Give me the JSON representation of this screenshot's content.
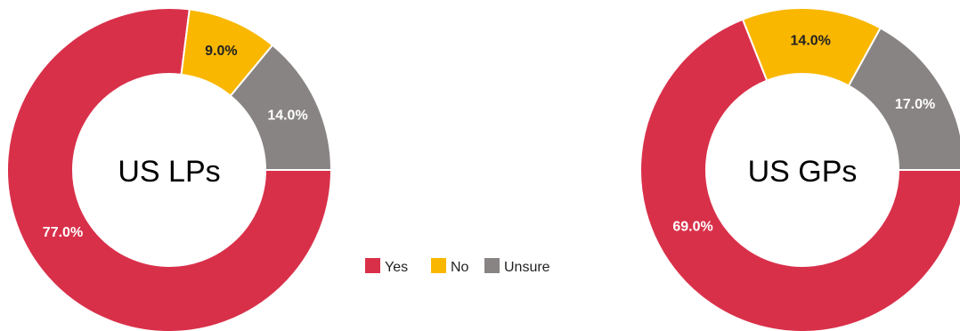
{
  "legend": {
    "items": [
      {
        "label": "Yes",
        "color": "#D9304A"
      },
      {
        "label": "No",
        "color": "#F9B700"
      },
      {
        "label": "Unsure",
        "color": "#888483"
      }
    ]
  },
  "chart_data": [
    {
      "type": "pie",
      "variant": "donut",
      "title": "US LPs",
      "categories": [
        "Yes",
        "No",
        "Unsure"
      ],
      "values": [
        77.0,
        9.0,
        14.0
      ],
      "labels": [
        "77.0%",
        "9.0%",
        "14.0%"
      ],
      "colors": [
        "#D9304A",
        "#F9B700",
        "#888483"
      ],
      "label_colors": [
        "#ffffff",
        "#222222",
        "#ffffff"
      ],
      "legend": "center"
    },
    {
      "type": "pie",
      "variant": "donut",
      "title": "US GPs",
      "categories": [
        "Yes",
        "No",
        "Unsure"
      ],
      "values": [
        69.0,
        14.0,
        17.0
      ],
      "labels": [
        "69.0%",
        "14.0%",
        "17.0%"
      ],
      "colors": [
        "#D9304A",
        "#F9B700",
        "#888483"
      ],
      "label_colors": [
        "#ffffff",
        "#222222",
        "#ffffff"
      ],
      "legend": "center"
    }
  ]
}
